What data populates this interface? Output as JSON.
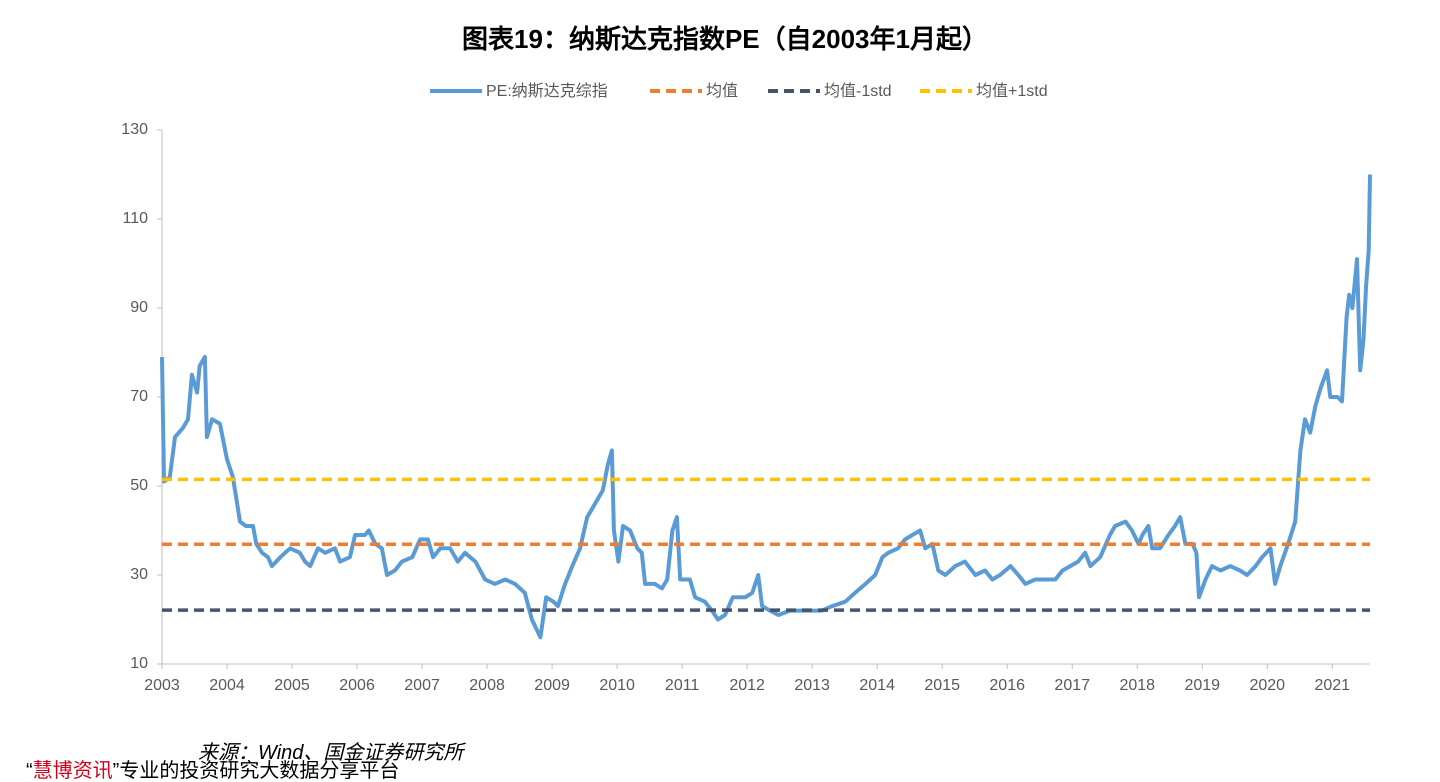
{
  "chart_data": {
    "type": "line",
    "title": "图表19：纳斯达克指数PE（自2003年1月起）",
    "xlim": [
      2003,
      2021.58
    ],
    "xticks": [
      2003,
      2004,
      2005,
      2006,
      2007,
      2008,
      2009,
      2010,
      2011,
      2012,
      2013,
      2014,
      2015,
      2016,
      2017,
      2018,
      2019,
      2020,
      2021
    ],
    "ylim": [
      10,
      130
    ],
    "yticks": [
      10,
      30,
      50,
      70,
      90,
      110,
      130
    ],
    "legend": "top",
    "series": [
      {
        "name": "PE:纳斯达克综指",
        "color": "#5b9bd5",
        "x": [
          2003.0,
          2003.03,
          2003.12,
          2003.2,
          2003.32,
          2003.4,
          2003.46,
          2003.54,
          2003.58,
          2003.66,
          2003.69,
          2003.77,
          2003.89,
          2004.0,
          2004.09,
          2004.2,
          2004.29,
          2004.4,
          2004.45,
          2004.54,
          2004.63,
          2004.69,
          2004.82,
          2004.97,
          2005.12,
          2005.2,
          2005.28,
          2005.4,
          2005.51,
          2005.66,
          2005.74,
          2005.89,
          2005.97,
          2006.12,
          2006.18,
          2006.28,
          2006.38,
          2006.46,
          2006.58,
          2006.69,
          2006.85,
          2006.97,
          2007.09,
          2007.17,
          2007.28,
          2007.43,
          2007.55,
          2007.66,
          2007.82,
          2007.97,
          2008.12,
          2008.28,
          2008.43,
          2008.58,
          2008.69,
          2008.82,
          2008.91,
          2009.02,
          2009.09,
          2009.2,
          2009.31,
          2009.43,
          2009.54,
          2009.66,
          2009.78,
          2009.86,
          2009.92,
          2009.95,
          2010.02,
          2010.09,
          2010.2,
          2010.31,
          2010.38,
          2010.43,
          2010.58,
          2010.69,
          2010.77,
          2010.85,
          2010.92,
          2010.97,
          2011.12,
          2011.2,
          2011.35,
          2011.46,
          2011.55,
          2011.66,
          2011.78,
          2011.97,
          2012.08,
          2012.17,
          2012.23,
          2012.35,
          2012.48,
          2012.66,
          2012.82,
          2013.0,
          2013.15,
          2013.31,
          2013.51,
          2013.66,
          2013.82,
          2013.97,
          2014.08,
          2014.17,
          2014.32,
          2014.43,
          2014.54,
          2014.66,
          2014.74,
          2014.85,
          2014.94,
          2015.05,
          2015.2,
          2015.35,
          2015.51,
          2015.66,
          2015.77,
          2015.89,
          2016.05,
          2016.17,
          2016.28,
          2016.43,
          2016.58,
          2016.74,
          2016.85,
          2016.97,
          2017.09,
          2017.2,
          2017.28,
          2017.43,
          2017.58,
          2017.66,
          2017.82,
          2017.92,
          2018.02,
          2018.08,
          2018.17,
          2018.23,
          2018.35,
          2018.48,
          2018.58,
          2018.66,
          2018.74,
          2018.85,
          2018.91,
          2018.95,
          2019.05,
          2019.15,
          2019.28,
          2019.43,
          2019.58,
          2019.69,
          2019.82,
          2019.92,
          2020.05,
          2020.12,
          2020.2,
          2020.32,
          2020.43,
          2020.51,
          2020.58,
          2020.66,
          2020.74,
          2020.82,
          2020.92,
          2020.97,
          2021.08,
          2021.15,
          2021.22,
          2021.26,
          2021.31,
          2021.38,
          2021.43,
          2021.48,
          2021.52,
          2021.56,
          2021.58
        ],
        "values": [
          79,
          51,
          52,
          61,
          63,
          65,
          75,
          71,
          77,
          79,
          61,
          65,
          64,
          56,
          52,
          42,
          41,
          41,
          37,
          35,
          34,
          32,
          34,
          36,
          35,
          33,
          32,
          36,
          35,
          36,
          33,
          34,
          39,
          39,
          40,
          37,
          36,
          30,
          31,
          33,
          34,
          38,
          38,
          34,
          36,
          36,
          33,
          35,
          33,
          29,
          28,
          29,
          28,
          26,
          20,
          16,
          25,
          24,
          23,
          28,
          32,
          36,
          43,
          46,
          49,
          55,
          58,
          40,
          33,
          41,
          40,
          36,
          35,
          28,
          28,
          27,
          29,
          40,
          43,
          29,
          29,
          25,
          24,
          22,
          20,
          21,
          25,
          25,
          26,
          30,
          23,
          22,
          21,
          22,
          22,
          22,
          22,
          23,
          24,
          26,
          28,
          30,
          34,
          35,
          36,
          38,
          39,
          40,
          36,
          37,
          31,
          30,
          32,
          33,
          30,
          31,
          29,
          30,
          32,
          30,
          28,
          29,
          29,
          29,
          31,
          32,
          33,
          35,
          32,
          34,
          39,
          41,
          42,
          40,
          37,
          39,
          41,
          36,
          36,
          39,
          41,
          43,
          37,
          37,
          35,
          25,
          29,
          32,
          31,
          32,
          31,
          30,
          32,
          34,
          36,
          28,
          32,
          37,
          42,
          58,
          65,
          62,
          68,
          72,
          76,
          70,
          70,
          69,
          88,
          93,
          90,
          101,
          76,
          83,
          95,
          103,
          120
        ]
      },
      {
        "name": "均值",
        "color": "#ed7d31",
        "value": 36.9
      },
      {
        "name": "均值-1std",
        "color": "#44546a",
        "value": 22.1
      },
      {
        "name": "均值+1std",
        "color": "#ffc000",
        "value": 51.5
      }
    ]
  },
  "source": "来源：Wind、国金证券研究所",
  "watermark": {
    "open": "“",
    "brand": "慧博资讯",
    "rest": "”专业的投资研究大数据分享平台"
  }
}
